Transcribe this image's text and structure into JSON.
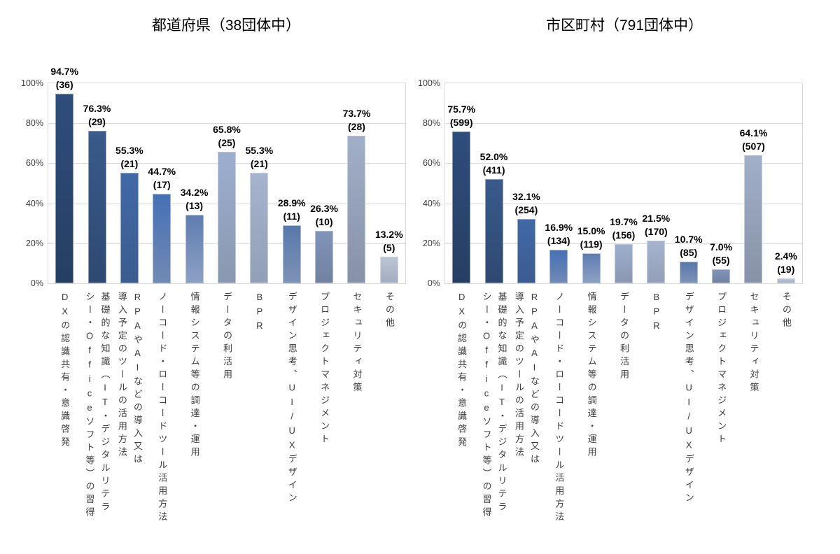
{
  "chart_data": [
    {
      "type": "bar",
      "title": "都道府県（38団体中）",
      "total_label": "38団体中",
      "categories": [
        "DXの認識共有・意識啓発",
        "基礎的な知識（IT・デジタルリテラシー・Officeソフト等）の習得",
        "RPAやAIなどの導入又は導入予定のツールの活用方法",
        "ノーコード・ローコードツール活用方法",
        "情報システム等の調達・運用",
        "データの利活用",
        "BPR",
        "デザイン思考、UI/UXデザイン",
        "プロジェクトマネジメント",
        "セキュリティ対策",
        "その他"
      ],
      "categories_display": [
        "DXの認識共有・意識啓発",
        "基礎的な知識（IT・デジタルリテラ\nシー・Officeソフト等）の習得",
        "RPAやAIなどの導入又は\n導入予定のツールの活用方法",
        "ノーコード・ローコードツール活用方法",
        "情報システム等の調達・運用",
        "データの利活用",
        "BPR",
        "デザイン思考、UI/UXデザイン",
        "プロジェクトマネジメント",
        "セキュリティ対策",
        "その他"
      ],
      "values_percent": [
        94.7,
        76.3,
        55.3,
        44.7,
        34.2,
        65.8,
        55.3,
        28.9,
        26.3,
        73.7,
        13.2
      ],
      "counts": [
        36,
        29,
        21,
        17,
        13,
        25,
        21,
        11,
        10,
        28,
        5
      ],
      "ylim": [
        0,
        100
      ],
      "yticks": [
        {
          "label": "0%",
          "value": 0
        },
        {
          "label": "20%",
          "value": 20
        },
        {
          "label": "40%",
          "value": 40
        },
        {
          "label": "60%",
          "value": 60
        },
        {
          "label": "80%",
          "value": 80
        },
        {
          "label": "100%",
          "value": 100
        }
      ],
      "grid": true,
      "legend": false,
      "xlabel": "",
      "ylabel": "",
      "bar_colors": [
        {
          "top": "#2F4D7C",
          "bottom": "#263E62"
        },
        {
          "top": "#395A8C",
          "bottom": "#2E4971"
        },
        {
          "top": "#4169A7",
          "bottom": "#3B5C90"
        },
        {
          "top": "#4571B5",
          "bottom": "#7289B4"
        },
        {
          "top": "#5F7DB2",
          "bottom": "#8CA0C2"
        },
        {
          "top": "#9DAED0",
          "bottom": "#8A97AF"
        },
        {
          "top": "#A6B3CE",
          "bottom": "#939FB8"
        },
        {
          "top": "#5878AC",
          "bottom": "#7D92B6"
        },
        {
          "top": "#8094BA",
          "bottom": "#71829F"
        },
        {
          "top": "#A2AFC9",
          "bottom": "#8792A7"
        },
        {
          "top": "#BCC5D5",
          "bottom": "#A2ADC1"
        }
      ]
    },
    {
      "type": "bar",
      "title": "市区町村（791団体中）",
      "total_label": "791団体中",
      "categories": [
        "DXの認識共有・意識啓発",
        "基礎的な知識（IT・デジタルリテラシー・Officeソフト等）の習得",
        "RPAやAIなどの導入又は導入予定のツールの活用方法",
        "ノーコード・ローコードツール活用方法",
        "情報システム等の調達・運用",
        "データの利活用",
        "BPR",
        "デザイン思考、UI/UXデザイン",
        "プロジェクトマネジメント",
        "セキュリティ対策",
        "その他"
      ],
      "categories_display": [
        "DXの認識共有・意識啓発",
        "基礎的な知識（IT・デジタルリテラ\nシー・Officeソフト等）の習得",
        "RPAやAIなどの導入又は\n導入予定のツールの活用方法",
        "ノーコード・ローコードツール活用方法",
        "情報システム等の調達・運用",
        "データの利活用",
        "BPR",
        "デザイン思考、UI/UXデザイン",
        "プロジェクトマネジメント",
        "セキュリティ対策",
        "その他"
      ],
      "values_percent": [
        75.7,
        52.0,
        32.1,
        16.9,
        15.0,
        19.7,
        21.5,
        10.7,
        7.0,
        64.1,
        2.4
      ],
      "counts": [
        599,
        411,
        254,
        134,
        119,
        156,
        170,
        85,
        55,
        507,
        19
      ],
      "ylim": [
        0,
        100
      ],
      "yticks": [
        {
          "label": "0%",
          "value": 0
        },
        {
          "label": "20%",
          "value": 20
        },
        {
          "label": "40%",
          "value": 40
        },
        {
          "label": "60%",
          "value": 60
        },
        {
          "label": "80%",
          "value": 80
        },
        {
          "label": "100%",
          "value": 100
        }
      ],
      "grid": true,
      "legend": false,
      "xlabel": "",
      "ylabel": "",
      "bar_colors": [
        {
          "top": "#2F4D7C",
          "bottom": "#263E62"
        },
        {
          "top": "#395A8C",
          "bottom": "#2E4971"
        },
        {
          "top": "#4169A7",
          "bottom": "#3B5C90"
        },
        {
          "top": "#4571B5",
          "bottom": "#7289B4"
        },
        {
          "top": "#5F7DB2",
          "bottom": "#8CA0C2"
        },
        {
          "top": "#9DAED0",
          "bottom": "#8A97AF"
        },
        {
          "top": "#A6B3CE",
          "bottom": "#939FB8"
        },
        {
          "top": "#5878AC",
          "bottom": "#7D92B6"
        },
        {
          "top": "#8094BA",
          "bottom": "#71829F"
        },
        {
          "top": "#A2AFC9",
          "bottom": "#8792A7"
        },
        {
          "top": "#BCC5D5",
          "bottom": "#A2ADC1"
        }
      ]
    }
  ]
}
